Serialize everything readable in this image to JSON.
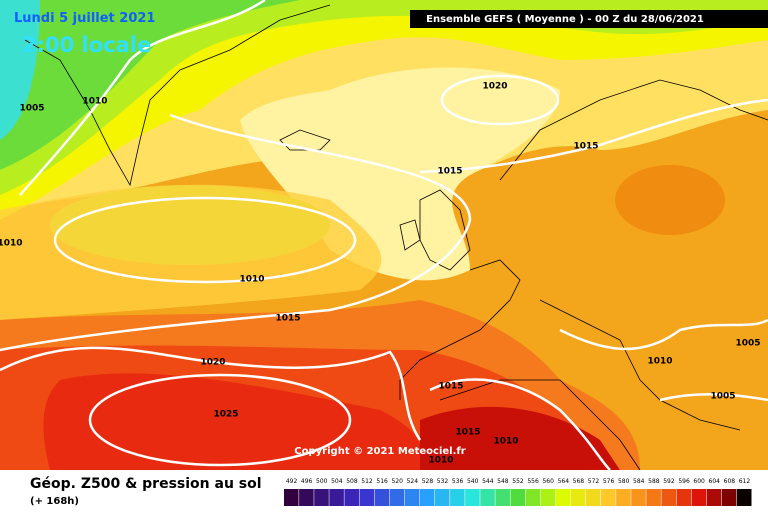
{
  "header": {
    "date": "Lundi 5 juillet 2021",
    "time": "2:00 locale",
    "model": "Ensemble GEFS  ( Moyenne )  - 00 Z du 28/06/2021"
  },
  "isobars": {
    "labels": [
      "1005",
      "1010",
      "1020",
      "1015",
      "1015",
      "1010",
      "1010",
      "1015",
      "1020",
      "1015",
      "1025",
      "1015",
      "1010",
      "1010",
      "1010",
      "1005",
      "1005"
    ]
  },
  "copyright": "Copyright © 2021 Meteociel.fr",
  "legend": {
    "title": "Géop. Z500 & pression au sol",
    "subtitle": "(+ 168h)",
    "scale": [
      "492",
      "496",
      "500",
      "504",
      "508",
      "512",
      "516",
      "520",
      "524",
      "528",
      "532",
      "536",
      "540",
      "544",
      "548",
      "552",
      "556",
      "560",
      "564",
      "568",
      "572",
      "576",
      "580",
      "584",
      "588",
      "592",
      "596",
      "600",
      "604",
      "608",
      "612"
    ]
  }
}
